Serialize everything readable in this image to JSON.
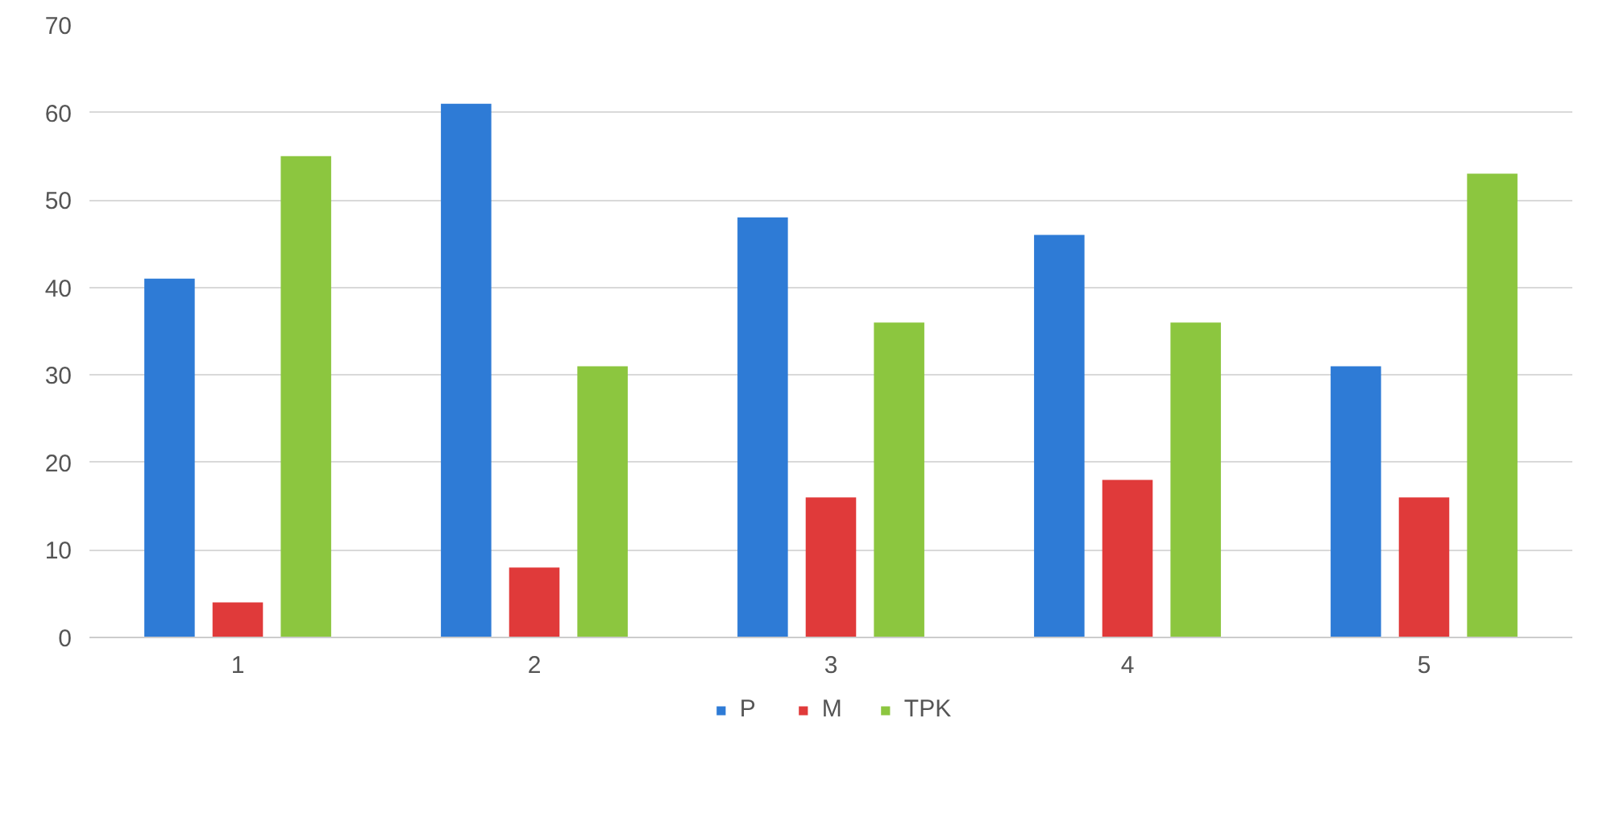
{
  "chart_data": {
    "type": "bar",
    "categories": [
      "1",
      "2",
      "3",
      "4",
      "5"
    ],
    "series": [
      {
        "name": "P",
        "color": "#2e7bd6",
        "values": [
          41,
          61,
          48,
          46,
          31
        ]
      },
      {
        "name": "M",
        "color": "#e03a3a",
        "values": [
          4,
          8,
          16,
          18,
          16
        ]
      },
      {
        "name": "TPK",
        "color": "#8cc63f",
        "values": [
          55,
          31,
          36,
          36,
          53
        ]
      }
    ],
    "ylim": [
      0,
      70
    ],
    "yticks": [
      0,
      10,
      20,
      30,
      40,
      50,
      60,
      70
    ],
    "grid": "y",
    "legend": "bottom"
  }
}
